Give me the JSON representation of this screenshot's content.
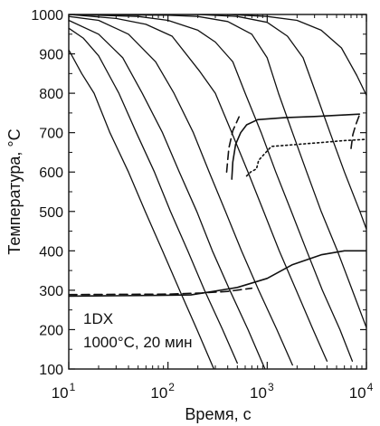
{
  "chart_data": {
    "type": "line",
    "title": "",
    "xlabel": "Время, с",
    "ylabel": "Температура, °С",
    "xscale": "log",
    "xlim": [
      10,
      10000
    ],
    "ylim": [
      100,
      1000
    ],
    "x_ticks": [
      {
        "value": 10,
        "base": "10",
        "exp": "1"
      },
      {
        "value": 100,
        "base": "10",
        "exp": "2"
      },
      {
        "value": 1000,
        "base": "10",
        "exp": "3"
      },
      {
        "value": 10000,
        "base": "10",
        "exp": "4"
      }
    ],
    "y_ticks": [
      100,
      200,
      300,
      400,
      500,
      600,
      700,
      800,
      900,
      1000
    ],
    "grid": false,
    "annotations": [
      "1DX",
      "1000°С, 20 мин"
    ],
    "series": [
      {
        "kind": "cooling",
        "points": [
          [
            10,
            910
          ],
          [
            13.5,
            850
          ],
          [
            18,
            800
          ],
          [
            26,
            700
          ],
          [
            40,
            600
          ],
          [
            59,
            500
          ],
          [
            88,
            400
          ],
          [
            131,
            300
          ],
          [
            196,
            200
          ],
          [
            290,
            100
          ]
        ]
      },
      {
        "kind": "cooling",
        "points": [
          [
            10,
            965
          ],
          [
            14,
            940
          ],
          [
            20,
            895
          ],
          [
            32,
            800
          ],
          [
            48,
            700
          ],
          [
            73,
            600
          ],
          [
            106,
            500
          ],
          [
            158,
            400
          ],
          [
            233,
            300
          ],
          [
            355,
            200
          ],
          [
            500,
            115
          ]
        ]
      },
      {
        "kind": "cooling",
        "points": [
          [
            10,
            985
          ],
          [
            20,
            950
          ],
          [
            35,
            890
          ],
          [
            55,
            800
          ],
          [
            88,
            700
          ],
          [
            130,
            600
          ],
          [
            195,
            500
          ],
          [
            280,
            400
          ],
          [
            420,
            300
          ],
          [
            640,
            200
          ],
          [
            950,
            100
          ]
        ]
      },
      {
        "kind": "cooling",
        "points": [
          [
            10,
            995
          ],
          [
            20,
            985
          ],
          [
            40,
            950
          ],
          [
            75,
            880
          ],
          [
            115,
            800
          ],
          [
            180,
            700
          ],
          [
            260,
            600
          ],
          [
            380,
            500
          ],
          [
            550,
            400
          ],
          [
            820,
            300
          ],
          [
            1250,
            200
          ],
          [
            1800,
            110
          ]
        ]
      },
      {
        "kind": "cooling",
        "points": [
          [
            10,
            1000
          ],
          [
            30,
            990
          ],
          [
            60,
            975
          ],
          [
            110,
            945
          ],
          [
            210,
            855
          ],
          [
            300,
            800
          ],
          [
            440,
            700
          ],
          [
            640,
            600
          ],
          [
            920,
            500
          ],
          [
            1320,
            400
          ],
          [
            1960,
            300
          ],
          [
            2900,
            200
          ],
          [
            4000,
            120
          ]
        ]
      },
      {
        "kind": "cooling",
        "points": [
          [
            10,
            1000
          ],
          [
            50,
            995
          ],
          [
            100,
            985
          ],
          [
            200,
            960
          ],
          [
            300,
            930
          ],
          [
            450,
            880
          ],
          [
            600,
            800
          ],
          [
            870,
            700
          ],
          [
            1220,
            600
          ],
          [
            1750,
            500
          ],
          [
            2500,
            400
          ],
          [
            3600,
            300
          ],
          [
            5400,
            200
          ],
          [
            7200,
            120
          ]
        ]
      },
      {
        "kind": "cooling",
        "points": [
          [
            10,
            1000
          ],
          [
            100,
            998
          ],
          [
            200,
            995
          ],
          [
            400,
            982
          ],
          [
            700,
            950
          ],
          [
            1000,
            890
          ],
          [
            1300,
            800
          ],
          [
            1800,
            700
          ],
          [
            2500,
            600
          ],
          [
            3500,
            500
          ],
          [
            5100,
            400
          ],
          [
            7200,
            300
          ],
          [
            10000,
            205
          ]
        ]
      },
      {
        "kind": "cooling",
        "points": [
          [
            10,
            1000
          ],
          [
            200,
            1000
          ],
          [
            500,
            995
          ],
          [
            1000,
            980
          ],
          [
            1600,
            945
          ],
          [
            2300,
            890
          ],
          [
            3100,
            800
          ],
          [
            4300,
            700
          ],
          [
            6000,
            600
          ],
          [
            8600,
            500
          ],
          [
            10000,
            455
          ]
        ]
      },
      {
        "kind": "cooling",
        "points": [
          [
            10,
            1000
          ],
          [
            400,
            1000
          ],
          [
            1000,
            995
          ],
          [
            2000,
            985
          ],
          [
            3500,
            960
          ],
          [
            5600,
            915
          ],
          [
            8000,
            845
          ],
          [
            10000,
            795
          ]
        ]
      },
      {
        "kind": "start_transformation_upper",
        "style": "solid",
        "points": [
          [
            440,
            582
          ],
          [
            450,
            625
          ],
          [
            480,
            670
          ],
          [
            540,
            700
          ],
          [
            620,
            720
          ],
          [
            800,
            733
          ],
          [
            1500,
            738
          ],
          [
            3000,
            741
          ],
          [
            6000,
            745
          ],
          [
            8500,
            747
          ]
        ]
      },
      {
        "kind": "phase_boundary_upper_left",
        "style": "dashed",
        "points": [
          [
            390,
            600
          ],
          [
            410,
            660
          ],
          [
            450,
            705
          ],
          [
            520,
            740
          ]
        ]
      },
      {
        "kind": "phase_boundary_upper_right",
        "style": "dashed",
        "points": [
          [
            7000,
            660
          ],
          [
            7300,
            695
          ],
          [
            7800,
            720
          ],
          [
            8500,
            745
          ]
        ]
      },
      {
        "kind": "end_transformation_upper",
        "style": "dotted",
        "points": [
          [
            620,
            590
          ],
          [
            680,
            600
          ],
          [
            780,
            608
          ],
          [
            820,
            630
          ],
          [
            1100,
            665
          ],
          [
            2000,
            670
          ],
          [
            3500,
            675
          ],
          [
            6000,
            680
          ],
          [
            10000,
            683
          ]
        ]
      },
      {
        "kind": "martensite_start",
        "style": "solid",
        "points": [
          [
            10,
            285
          ],
          [
            80,
            287
          ],
          [
            170,
            288
          ],
          [
            300,
            298
          ],
          [
            500,
            307
          ],
          [
            1000,
            330
          ],
          [
            1800,
            365
          ],
          [
            3500,
            390
          ],
          [
            6000,
            400
          ],
          [
            10000,
            400
          ]
        ]
      },
      {
        "kind": "martensite_dashed",
        "style": "dashed",
        "points": [
          [
            10,
            289
          ],
          [
            100,
            290
          ],
          [
            220,
            293
          ],
          [
            400,
            297
          ],
          [
            700,
            305
          ]
        ]
      }
    ]
  }
}
